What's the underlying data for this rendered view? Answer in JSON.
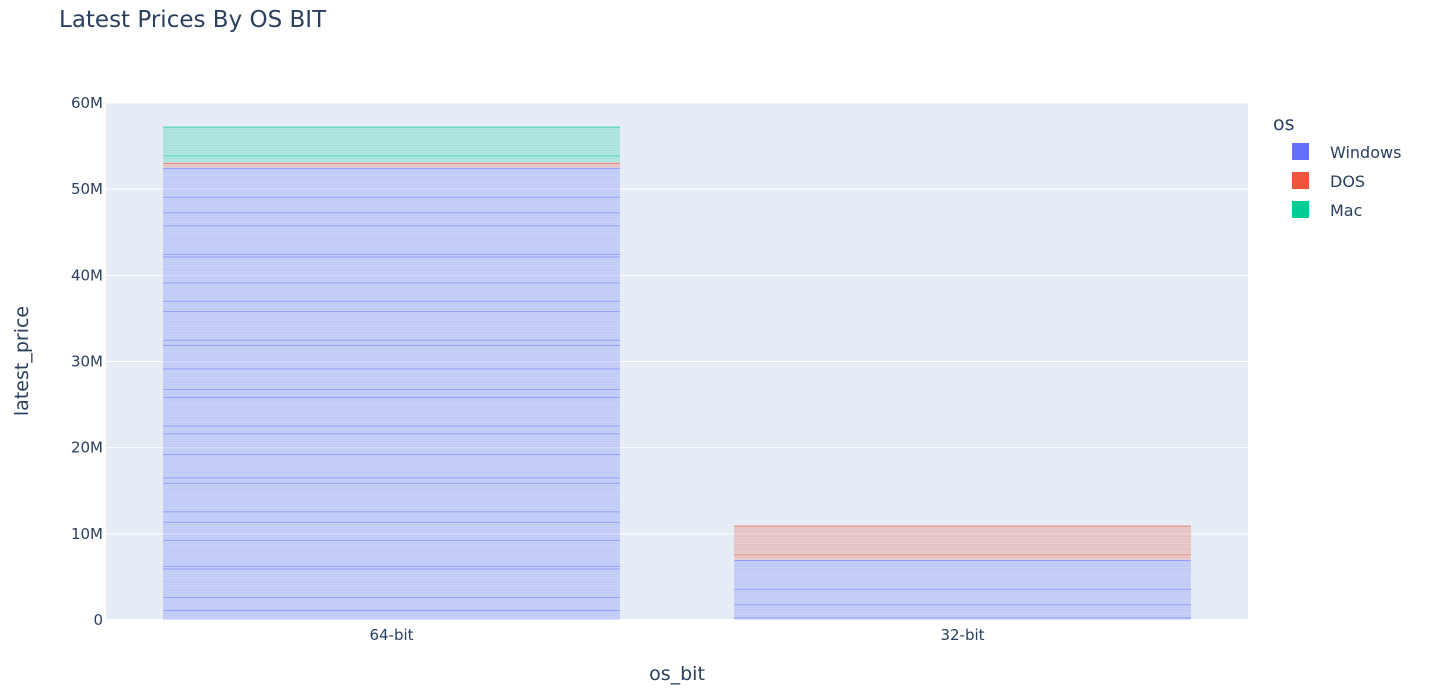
{
  "chart_data": {
    "type": "bar",
    "title": "Latest Prices By OS BIT",
    "xlabel": "os_bit",
    "ylabel": "latest_price",
    "categories": [
      "64-bit",
      "32-bit"
    ],
    "ylim": [
      0,
      60000000
    ],
    "y_ticks": [
      {
        "value": 0,
        "label": "0"
      },
      {
        "value": 10000000,
        "label": "10M"
      },
      {
        "value": 20000000,
        "label": "20M"
      },
      {
        "value": 30000000,
        "label": "30M"
      },
      {
        "value": 40000000,
        "label": "40M"
      },
      {
        "value": 50000000,
        "label": "50M"
      },
      {
        "value": 60000000,
        "label": "60M"
      }
    ],
    "grid": true,
    "barmode": "stack",
    "legend": {
      "title": "os",
      "placement": "right",
      "entries": [
        "Windows",
        "DOS",
        "Mac"
      ]
    },
    "series": [
      {
        "name": "Windows",
        "color": "#636efa",
        "values": [
          52500000,
          7000000
        ]
      },
      {
        "name": "DOS",
        "color": "#ef553b",
        "values": [
          600000,
          4000000
        ]
      },
      {
        "name": "Mac",
        "color": "#00cc96",
        "values": [
          4200000,
          0
        ]
      }
    ]
  }
}
